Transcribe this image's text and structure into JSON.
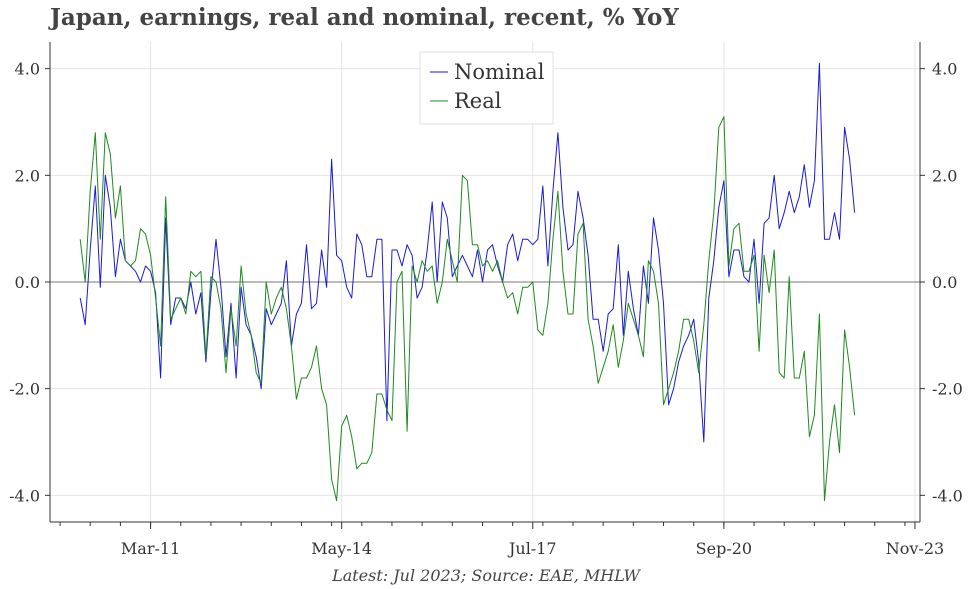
{
  "title": "Japan, earnings, real and nominal, recent, % YoY",
  "footer": "Latest: Jul 2023; Source: EAE, MHLW",
  "chart_data": {
    "type": "line",
    "title": "Japan, earnings, real and nominal, recent, % YoY",
    "xlabel": "",
    "ylabel": "",
    "ylim": [
      -4.5,
      4.5
    ],
    "y_ticks": [
      -4.0,
      -2.0,
      0.0,
      2.0,
      4.0
    ],
    "y_tick_labels": [
      "-4.0",
      "-2.0",
      "0.0",
      "2.0",
      "4.0"
    ],
    "x_range": [
      "2009-07",
      "2023-12"
    ],
    "x_ticks": [
      {
        "date": "2011-03",
        "label": "Mar-11"
      },
      {
        "date": "2014-05",
        "label": "May-14"
      },
      {
        "date": "2017-07",
        "label": "Jul-17"
      },
      {
        "date": "2020-09",
        "label": "Sep-20"
      },
      {
        "date": "2023-11",
        "label": "Nov-23"
      }
    ],
    "secondary_y_axis_mirrored": true,
    "grid": true,
    "zero_line": true,
    "legend_position": "top-center",
    "start": "2010-01",
    "frequency": "monthly",
    "series": [
      {
        "name": "Nominal",
        "color": "#1a1adb",
        "values": [
          -0.3,
          -0.8,
          0.6,
          1.8,
          -0.1,
          2.0,
          1.4,
          0.1,
          0.8,
          0.4,
          0.3,
          0.2,
          0.0,
          0.3,
          0.2,
          -0.2,
          -1.8,
          1.2,
          -0.8,
          -0.3,
          -0.3,
          -0.5,
          0.0,
          -0.6,
          -0.2,
          -1.5,
          -0.2,
          0.8,
          -0.1,
          -1.4,
          -0.4,
          -1.8,
          -0.1,
          -0.8,
          -1.0,
          -1.4,
          -2.0,
          -0.5,
          -0.8,
          -0.6,
          -0.4,
          0.4,
          -1.2,
          -0.6,
          -0.4,
          0.7,
          -0.5,
          -0.4,
          0.6,
          -0.1,
          2.3,
          0.5,
          0.4,
          -0.1,
          -0.3,
          0.9,
          0.7,
          0.1,
          0.1,
          0.8,
          0.8,
          -2.6,
          0.6,
          0.6,
          0.3,
          0.7,
          0.5,
          -0.3,
          -0.1,
          0.6,
          1.5,
          0.0,
          1.5,
          1.2,
          0.1,
          0.3,
          0.5,
          0.3,
          0.1,
          0.6,
          0.0,
          0.6,
          0.7,
          0.3,
          0.0,
          0.7,
          0.9,
          0.4,
          0.8,
          0.8,
          0.7,
          0.8,
          1.8,
          0.3,
          1.7,
          2.8,
          1.4,
          0.6,
          0.7,
          1.7,
          1.2,
          0.5,
          -0.7,
          -0.7,
          -1.3,
          -0.6,
          -0.5,
          0.7,
          -1.0,
          0.2,
          -0.5,
          -1.0,
          0.3,
          -0.4,
          1.2,
          0.6,
          -0.4,
          -2.3,
          -2.0,
          -1.5,
          -1.2,
          -1.0,
          -0.7,
          -1.5,
          -3.0,
          -0.3,
          0.4,
          1.4,
          1.9,
          0.1,
          0.6,
          0.6,
          0.1,
          0.0,
          0.8,
          -0.4,
          1.1,
          1.2,
          2.0,
          1.0,
          1.3,
          1.7,
          1.3,
          1.6,
          2.2,
          1.4,
          1.9,
          4.1,
          0.8,
          0.8,
          1.3,
          0.8,
          2.9,
          2.3,
          1.3
        ]
      },
      {
        "name": "Real",
        "color": "#1e8a1e",
        "values": [
          0.8,
          0.0,
          1.7,
          2.8,
          0.8,
          2.8,
          2.4,
          1.2,
          1.8,
          0.4,
          0.3,
          0.4,
          1.0,
          0.9,
          0.5,
          -0.3,
          -1.2,
          1.6,
          -0.7,
          -0.5,
          -0.3,
          -0.6,
          0.2,
          0.1,
          0.2,
          -1.4,
          0.1,
          0.0,
          -0.5,
          -1.7,
          -0.5,
          -1.2,
          0.3,
          -0.6,
          -1.0,
          -1.7,
          -1.9,
          0.0,
          -0.6,
          -0.3,
          -0.1,
          -0.5,
          -1.2,
          -2.2,
          -1.8,
          -1.8,
          -1.6,
          -1.2,
          -2.0,
          -2.3,
          -3.7,
          -4.1,
          -2.7,
          -2.5,
          -2.9,
          -3.5,
          -3.4,
          -3.4,
          -3.2,
          -2.1,
          -2.1,
          -2.4,
          -2.6,
          0.0,
          0.2,
          -2.8,
          0.3,
          0.0,
          0.4,
          0.2,
          0.3,
          -0.4,
          0.0,
          0.8,
          0.4,
          0.0,
          2.0,
          1.9,
          0.7,
          0.7,
          0.3,
          0.4,
          0.2,
          0.4,
          0.0,
          -0.3,
          -0.2,
          -0.6,
          -0.1,
          -0.1,
          0.0,
          -0.9,
          -1.0,
          -0.4,
          0.8,
          1.7,
          0.2,
          -0.6,
          -0.6,
          0.9,
          1.1,
          -0.7,
          -1.2,
          -1.9,
          -1.6,
          -1.3,
          -0.8,
          -1.6,
          -1.1,
          -0.4,
          -0.7,
          -1.0,
          -1.4,
          0.4,
          0.2,
          -0.4,
          -2.3,
          -2.0,
          -1.7,
          -1.3,
          -0.7,
          -0.7,
          -1.1,
          -1.7,
          -0.8,
          0.4,
          1.3,
          2.9,
          3.1,
          0.3,
          1.0,
          1.1,
          0.2,
          0.2,
          0.5,
          -1.3,
          0.5,
          -0.2,
          0.6,
          -1.7,
          -1.8,
          0.1,
          -1.8,
          -1.8,
          -1.3,
          -2.9,
          -2.5,
          -0.6,
          -4.1,
          -3.0,
          -2.3,
          -3.2,
          -0.9,
          -1.6,
          -2.5
        ]
      }
    ]
  }
}
